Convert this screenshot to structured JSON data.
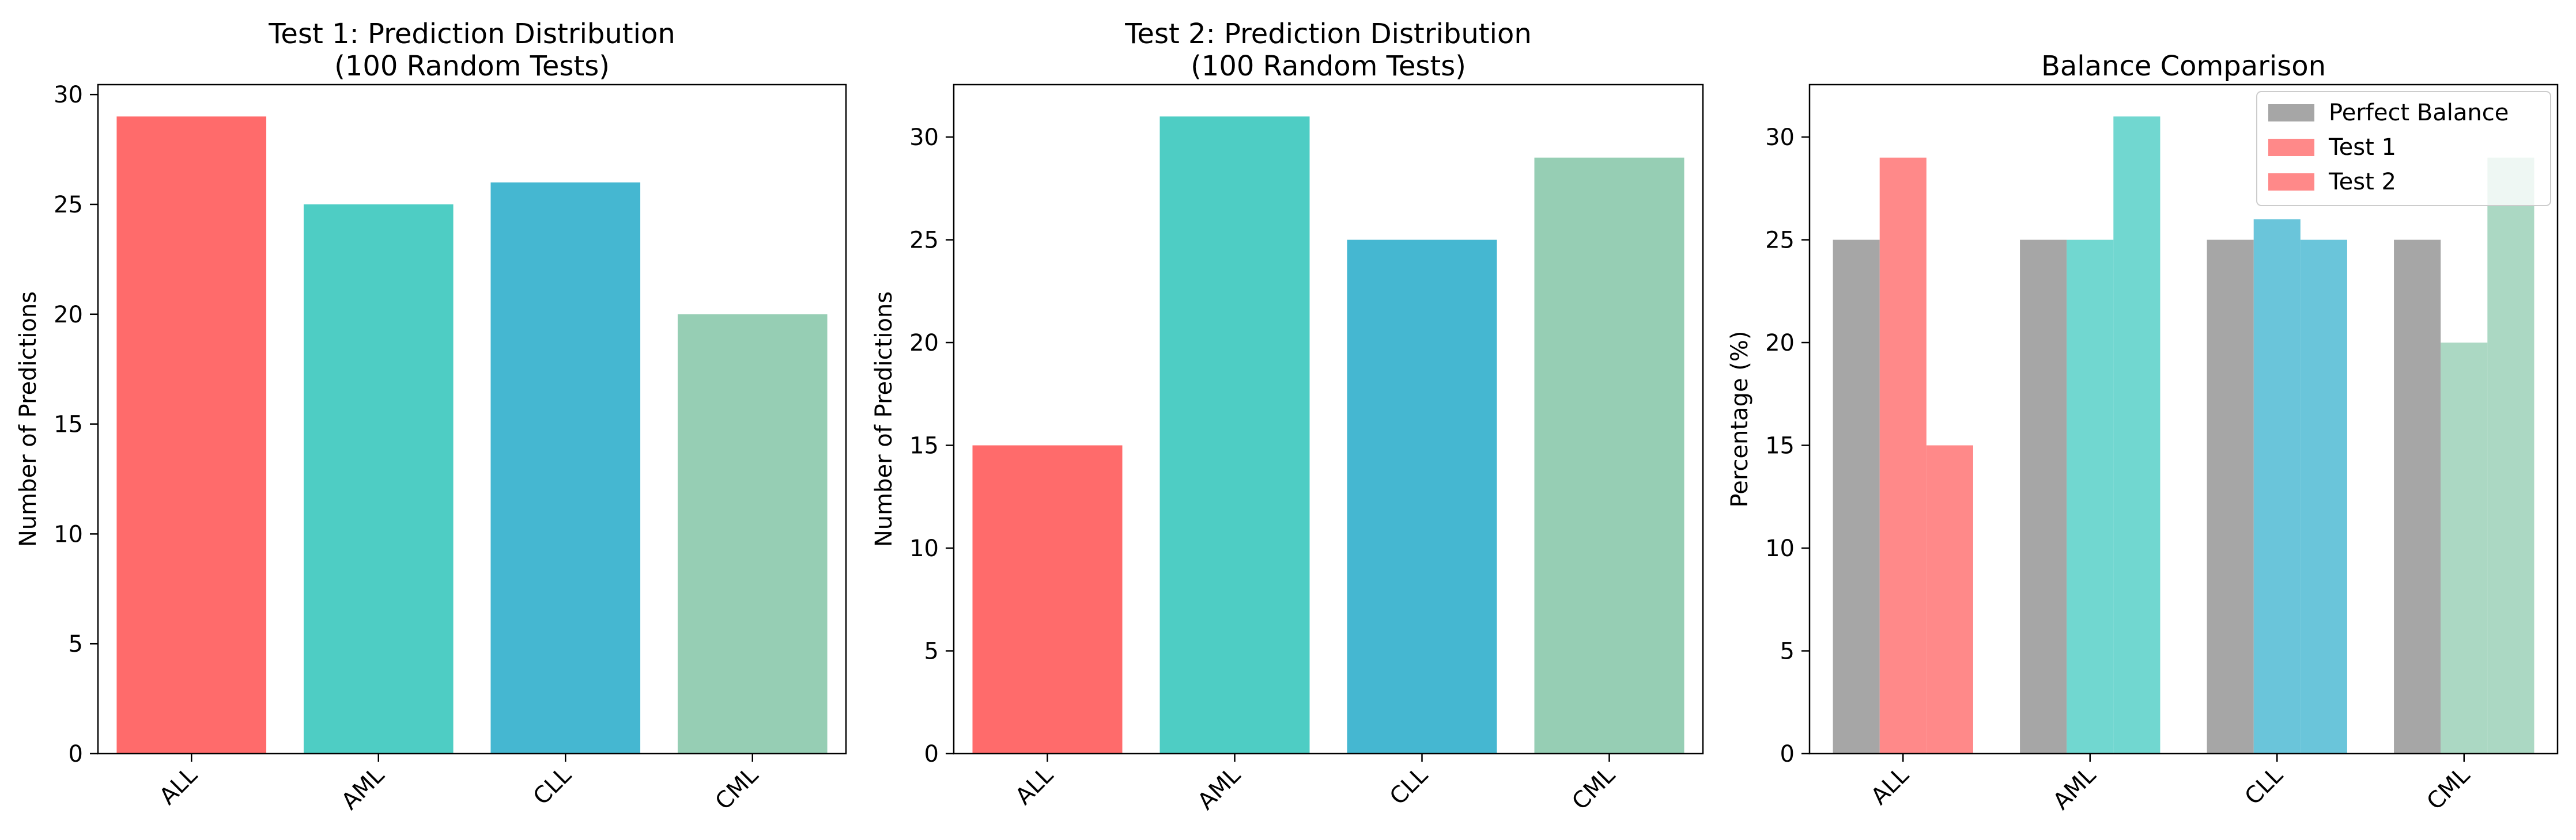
{
  "chart_data": [
    {
      "type": "bar",
      "title": "Test 1: Prediction Distribution\n(100 Random Tests)",
      "xlabel": "",
      "ylabel": "Number of Predictions",
      "categories": [
        "ALL",
        "AML",
        "CLL",
        "CML"
      ],
      "values": [
        29,
        25,
        26,
        20
      ],
      "colors": [
        "#ff6b6b",
        "#4ecdc4",
        "#45b7d1",
        "#96ceb4"
      ],
      "ylim": [
        0,
        30.45
      ],
      "yticks": [
        0,
        5,
        10,
        15,
        20,
        25,
        30
      ],
      "grid": false
    },
    {
      "type": "bar",
      "title": "Test 2: Prediction Distribution\n(100 Random Tests)",
      "xlabel": "",
      "ylabel": "Number of Predictions",
      "categories": [
        "ALL",
        "AML",
        "CLL",
        "CML"
      ],
      "values": [
        15,
        31,
        25,
        29
      ],
      "colors": [
        "#ff6b6b",
        "#4ecdc4",
        "#45b7d1",
        "#96ceb4"
      ],
      "ylim": [
        0,
        32.55
      ],
      "yticks": [
        0,
        5,
        10,
        15,
        20,
        25,
        30
      ],
      "grid": false
    },
    {
      "type": "bar",
      "title": "Balance Comparison",
      "xlabel": "",
      "ylabel": "Percentage (%)",
      "categories": [
        "ALL",
        "AML",
        "CLL",
        "CML"
      ],
      "series": [
        {
          "name": "Perfect Balance",
          "values": [
            25,
            25,
            25,
            25
          ],
          "color": "#808080",
          "alpha": 0.7
        },
        {
          "name": "Test 1",
          "values": [
            29,
            25,
            26,
            20
          ],
          "colors": [
            "#ff6b6b",
            "#4ecdc4",
            "#45b7d1",
            "#96ceb4"
          ],
          "alpha": 0.8
        },
        {
          "name": "Test 2",
          "values": [
            15,
            31,
            25,
            29
          ],
          "colors": [
            "#ff6b6b",
            "#4ecdc4",
            "#45b7d1",
            "#96ceb4"
          ],
          "alpha": 0.8
        }
      ],
      "ylim": [
        0,
        32.55
      ],
      "yticks": [
        0,
        5,
        10,
        15,
        20,
        25,
        30
      ],
      "legend": "top-right",
      "grid": false
    }
  ]
}
